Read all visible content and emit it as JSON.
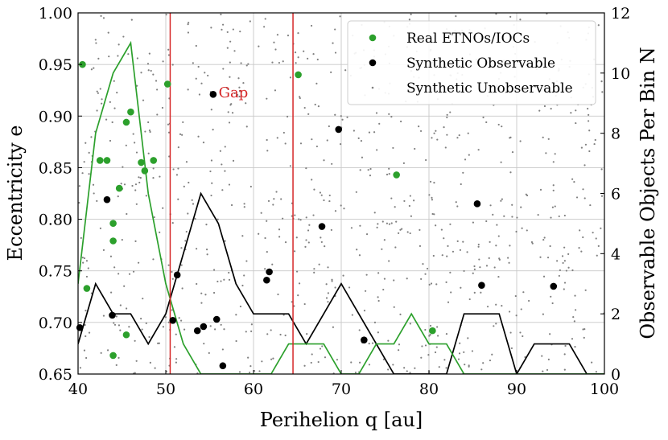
{
  "chart_data": {
    "type": "scatter",
    "title": "",
    "xlabel": "Perihelion q [au]",
    "ylabel": "Eccentricity e",
    "ylabel_right": "Observable Objects Per Bin N",
    "xlim": [
      40,
      100
    ],
    "ylim": [
      0.65,
      1.0
    ],
    "ylim_right": [
      0,
      12
    ],
    "xticks": [
      "40",
      "50",
      "60",
      "70",
      "80",
      "90",
      "100"
    ],
    "yticks": [
      "0.65",
      "0.70",
      "0.75",
      "0.80",
      "0.85",
      "0.90",
      "0.95",
      "1.00"
    ],
    "yticks_right": [
      "0",
      "2",
      "4",
      "6",
      "8",
      "10",
      "12"
    ],
    "grid": true,
    "legend_position": "top-right",
    "colors": {
      "real": "#2ca02c",
      "synthetic_observable": "#000000",
      "synthetic_unobservable": "#808080",
      "gap": "#d62728",
      "hist_observable": "#000000",
      "hist_real": "#2ca02c"
    },
    "series": [
      {
        "name": "Real ETNOs/IOCs",
        "kind": "scatter",
        "color": "#2ca02c",
        "points": [
          [
            40.5,
            0.95
          ],
          [
            41.0,
            0.733
          ],
          [
            42.5,
            0.857
          ],
          [
            43.3,
            0.857
          ],
          [
            44.0,
            0.796
          ],
          [
            44.0,
            0.779
          ],
          [
            44.0,
            0.668
          ],
          [
            44.7,
            0.83
          ],
          [
            45.5,
            0.894
          ],
          [
            45.5,
            0.688
          ],
          [
            46.0,
            0.904
          ],
          [
            47.2,
            0.855
          ],
          [
            47.6,
            0.847
          ],
          [
            48.6,
            0.857
          ],
          [
            50.2,
            0.931
          ],
          [
            65.1,
            0.94
          ],
          [
            76.3,
            0.843
          ],
          [
            80.4,
            0.692
          ]
        ]
      },
      {
        "name": "Synthetic Observable",
        "kind": "scatter",
        "color": "#000000",
        "points": [
          [
            40.2,
            0.695
          ],
          [
            43.3,
            0.819
          ],
          [
            43.9,
            0.707
          ],
          [
            50.8,
            0.702
          ],
          [
            51.3,
            0.746
          ],
          [
            53.6,
            0.692
          ],
          [
            54.3,
            0.696
          ],
          [
            55.4,
            0.921
          ],
          [
            55.8,
            0.703
          ],
          [
            56.5,
            0.658
          ],
          [
            61.5,
            0.741
          ],
          [
            61.8,
            0.749
          ],
          [
            67.8,
            0.793
          ],
          [
            69.7,
            0.887
          ],
          [
            72.6,
            0.683
          ],
          [
            85.5,
            0.815
          ],
          [
            86.0,
            0.736
          ],
          [
            94.2,
            0.735
          ]
        ]
      },
      {
        "name": "Synthetic Unobservable",
        "kind": "scatter",
        "color": "#808080",
        "count": 900
      },
      {
        "name": "Observable histogram",
        "kind": "step-line",
        "axis": "right",
        "color": "#000000",
        "x": [
          40,
          42,
          44,
          46,
          48,
          50,
          52,
          54,
          56,
          58,
          60,
          62,
          64,
          66,
          68,
          70,
          72,
          74,
          76,
          78,
          80,
          82,
          84,
          86,
          88,
          90,
          92,
          94,
          96,
          98,
          100
        ],
        "values": [
          1,
          3,
          2,
          2,
          1,
          2,
          4,
          6,
          5,
          3,
          2,
          2,
          2,
          1,
          2,
          3,
          2,
          1,
          0,
          0,
          0,
          0,
          2,
          2,
          2,
          0,
          1,
          1,
          1,
          0,
          0
        ]
      },
      {
        "name": "Real histogram",
        "kind": "step-line",
        "axis": "right",
        "color": "#2ca02c",
        "x": [
          40,
          42,
          44,
          46,
          48,
          50,
          52,
          54,
          56,
          58,
          60,
          62,
          64,
          66,
          68,
          70,
          72,
          74,
          76,
          78,
          80,
          82,
          84,
          86,
          88,
          90,
          92,
          94,
          96,
          98,
          100
        ],
        "values": [
          3,
          8,
          10,
          11,
          6,
          3,
          1,
          0,
          0,
          0,
          0,
          0,
          1,
          1,
          1,
          0,
          0,
          1,
          1,
          2,
          1,
          1,
          0,
          0,
          0,
          0,
          0,
          0,
          0,
          0,
          0
        ]
      }
    ],
    "gap_lines": [
      50.5,
      64.5
    ],
    "annotations": [
      {
        "text": "Gap",
        "x": 55.2,
        "y": 0.922,
        "color": "#d62728"
      }
    ]
  },
  "legend": {
    "items": [
      {
        "label": "Real ETNOs/IOCs",
        "marker": "dot",
        "color": "#2ca02c"
      },
      {
        "label": "Synthetic Observable",
        "marker": "dot",
        "color": "#000000"
      },
      {
        "label": "Synthetic Unobservable",
        "marker": "small-dot",
        "color": "#808080"
      }
    ]
  }
}
